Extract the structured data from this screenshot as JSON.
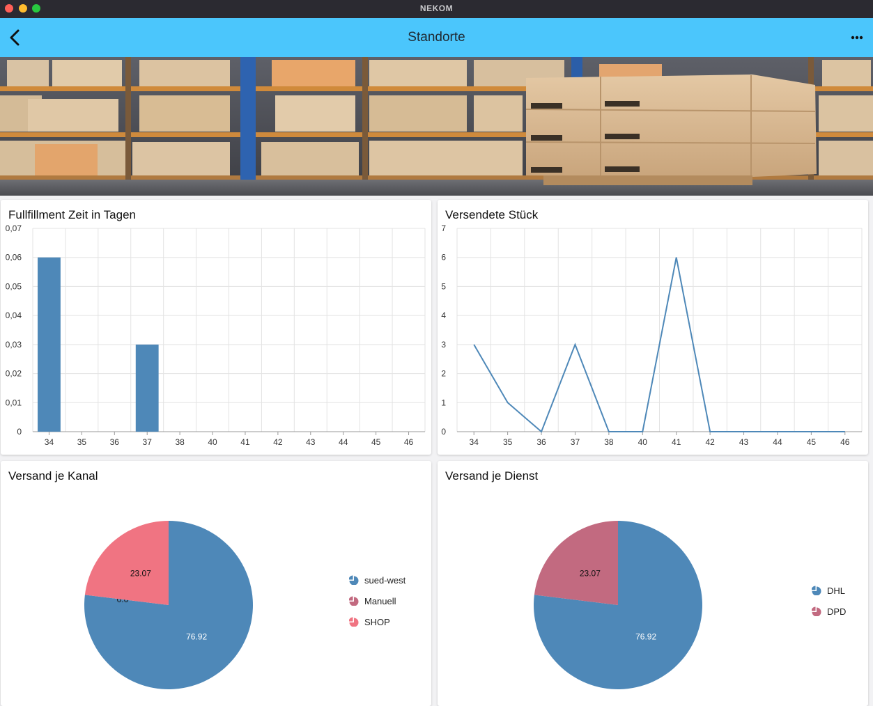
{
  "window": {
    "title": "NEKOM"
  },
  "appbar": {
    "title": "Standorte",
    "back_icon": "chevron-left-icon",
    "menu_icon": "more-horizontal-icon"
  },
  "hero": {
    "description_icon": "warehouse-image"
  },
  "colors": {
    "appbar": "#4bc6fc",
    "blue": "#4e88b8",
    "pink": "#f07482",
    "mauve": "#c26a80"
  },
  "cards": {
    "fulfillment": {
      "title": "Fullfillment Zeit in Tagen"
    },
    "versendete": {
      "title": "Versendete Stück"
    },
    "kanal": {
      "title": "Versand je Kanal"
    },
    "dienst": {
      "title": "Versand je Dienst"
    }
  },
  "chart_data": [
    {
      "type": "bar",
      "title": "Fullfillment Zeit in Tagen",
      "categories": [
        "34",
        "35",
        "36",
        "37",
        "38",
        "40",
        "41",
        "42",
        "43",
        "44",
        "45",
        "46"
      ],
      "values": [
        0.06,
        0,
        0,
        0.03,
        0,
        0,
        0,
        0,
        0,
        0,
        0,
        0
      ],
      "ylim": [
        0,
        0.07
      ],
      "yticks": [
        "0",
        "0,01",
        "0,02",
        "0,03",
        "0,04",
        "0,05",
        "0,06",
        "0,07"
      ],
      "grid": true
    },
    {
      "type": "line",
      "title": "Versendete Stück",
      "categories": [
        "34",
        "35",
        "36",
        "37",
        "38",
        "40",
        "41",
        "42",
        "43",
        "44",
        "45",
        "46"
      ],
      "values": [
        3,
        1,
        0,
        3,
        0,
        0,
        6,
        0,
        0,
        0,
        0,
        0
      ],
      "ylim": [
        0,
        7
      ],
      "yticks": [
        "0",
        "1",
        "2",
        "3",
        "4",
        "5",
        "6",
        "7"
      ],
      "grid": true
    },
    {
      "type": "pie",
      "title": "Versand je Kanal",
      "slices": [
        {
          "name": "sued-west",
          "value": 76.92,
          "label": "76.92",
          "color": "#4e88b8"
        },
        {
          "name": "Manuell",
          "value": 0.0,
          "label": "0.0",
          "color": "#c26a80"
        },
        {
          "name": "SHOP",
          "value": 23.07,
          "label": "23.07",
          "color": "#f07482"
        }
      ],
      "legend": "right"
    },
    {
      "type": "pie",
      "title": "Versand je Dienst",
      "slices": [
        {
          "name": "DHL",
          "value": 76.92,
          "label": "76.92",
          "color": "#4e88b8"
        },
        {
          "name": "DPD",
          "value": 23.07,
          "label": "23.07",
          "color": "#c26a80"
        }
      ],
      "legend": "right"
    }
  ]
}
